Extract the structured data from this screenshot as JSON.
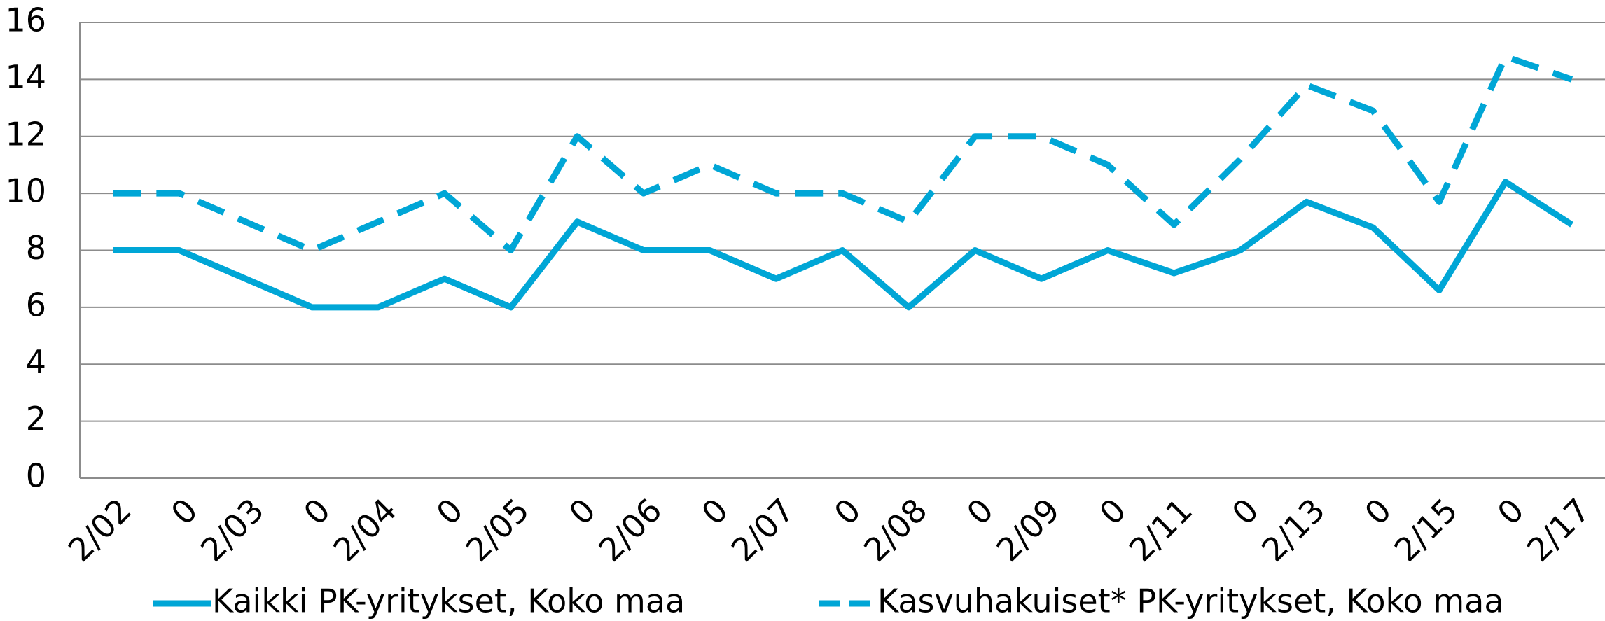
{
  "chart_data": {
    "type": "line",
    "categories": [
      "2/02",
      "0",
      "2/03",
      "0",
      "2/04",
      "0",
      "2/05",
      "0",
      "2/06",
      "0",
      "2/07",
      "0",
      "2/08",
      "0",
      "2/09",
      "0",
      "2/11",
      "0",
      "2/13",
      "0",
      "2/15",
      "0",
      "2/17"
    ],
    "series": [
      {
        "name": "Kaikki PK-yritykset, Koko maa",
        "color": "#00a6d6",
        "dash": false,
        "values": [
          8,
          8,
          7,
          6,
          6,
          7,
          6,
          9,
          8,
          8,
          7,
          8,
          6,
          8,
          7,
          8,
          7.2,
          8,
          9.7,
          8.8,
          6.6,
          10.4,
          8.9
        ]
      },
      {
        "name": "Kasvuhakuiset* PK-yritykset, Koko maa",
        "color": "#00a6d6",
        "dash": true,
        "values": [
          10,
          10,
          9,
          8,
          9,
          10,
          8,
          12,
          10,
          11,
          10,
          10,
          9,
          12,
          12,
          11,
          8.9,
          11.2,
          13.8,
          12.9,
          9.7,
          14.8,
          14
        ]
      }
    ],
    "ylim": [
      0,
      16
    ],
    "yticks": [
      0,
      2,
      4,
      6,
      8,
      10,
      12,
      14,
      16
    ],
    "grid": true,
    "legend": "bottom"
  }
}
